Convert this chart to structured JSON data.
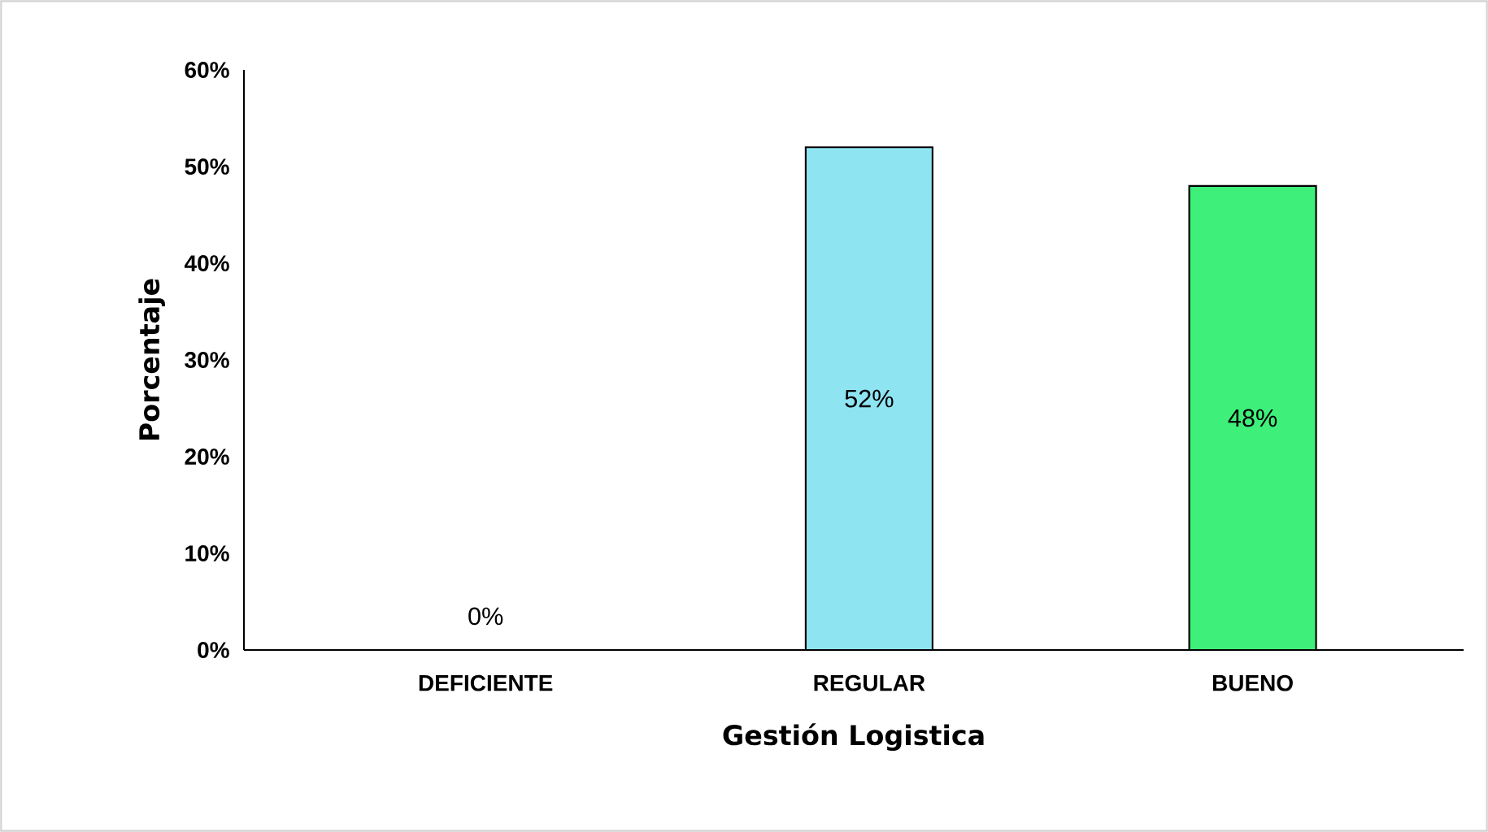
{
  "chart_data": {
    "type": "bar",
    "xlabel": "Gestión Logistica",
    "ylabel": "Porcentaje",
    "categories": [
      "DEFICIENTE",
      "REGULAR",
      "BUENO"
    ],
    "values": [
      0,
      52,
      48
    ],
    "value_labels": [
      "0%",
      "52%",
      "48%"
    ],
    "colors": [
      "#f4b183",
      "#8fe4f2",
      "#3ef07a"
    ],
    "ylim": [
      0,
      60
    ],
    "yticks": [
      {
        "value": 0,
        "label": "0%"
      },
      {
        "value": 10,
        "label": "10%"
      },
      {
        "value": 20,
        "label": "20%"
      },
      {
        "value": 30,
        "label": "30%"
      },
      {
        "value": 40,
        "label": "40%"
      },
      {
        "value": 50,
        "label": "50%"
      },
      {
        "value": 60,
        "label": "60%"
      }
    ]
  }
}
